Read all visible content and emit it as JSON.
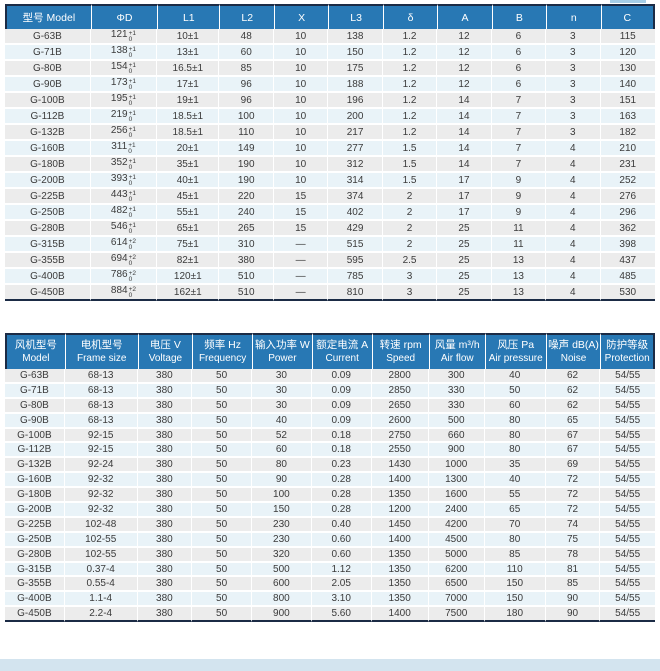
{
  "colors": {
    "header_blue": "#2878b4",
    "dark_border": "#1b2b45",
    "row_gray": "#ececec",
    "row_blue": "#e9f3f8",
    "bottom_band": "#d3e4ef"
  },
  "dimensions_table": {
    "headers": [
      "型号 Model",
      "ΦD",
      "L1",
      "L2",
      "X",
      "L3",
      "δ",
      "A",
      "B",
      "n",
      "C"
    ],
    "rows": [
      [
        "G-63B",
        {
          "v": "121",
          "top": "+1",
          "bot": "0"
        },
        "10±1",
        "48",
        "10",
        "138",
        "1.2",
        "12",
        "6",
        "3",
        "115"
      ],
      [
        "G-71B",
        {
          "v": "138",
          "top": "+1",
          "bot": "0"
        },
        "13±1",
        "60",
        "10",
        "150",
        "1.2",
        "12",
        "6",
        "3",
        "120"
      ],
      [
        "G-80B",
        {
          "v": "154",
          "top": "+1",
          "bot": "0"
        },
        "16.5±1",
        "85",
        "10",
        "175",
        "1.2",
        "12",
        "6",
        "3",
        "130"
      ],
      [
        "G-90B",
        {
          "v": "173",
          "top": "+1",
          "bot": "0"
        },
        "17±1",
        "96",
        "10",
        "188",
        "1.2",
        "12",
        "6",
        "3",
        "140"
      ],
      [
        "G-100B",
        {
          "v": "195",
          "top": "+1",
          "bot": "0"
        },
        "19±1",
        "96",
        "10",
        "196",
        "1.2",
        "14",
        "7",
        "3",
        "151"
      ],
      [
        "G-112B",
        {
          "v": "219",
          "top": "+1",
          "bot": "0"
        },
        "18.5±1",
        "100",
        "10",
        "200",
        "1.2",
        "14",
        "7",
        "3",
        "163"
      ],
      [
        "G-132B",
        {
          "v": "256",
          "top": "+1",
          "bot": "0"
        },
        "18.5±1",
        "110",
        "10",
        "217",
        "1.2",
        "14",
        "7",
        "3",
        "182"
      ],
      [
        "G-160B",
        {
          "v": "311",
          "top": "+1",
          "bot": "0"
        },
        "20±1",
        "149",
        "10",
        "277",
        "1.5",
        "14",
        "7",
        "4",
        "210"
      ],
      [
        "G-180B",
        {
          "v": "352",
          "top": "+1",
          "bot": "0"
        },
        "35±1",
        "190",
        "10",
        "312",
        "1.5",
        "14",
        "7",
        "4",
        "231"
      ],
      [
        "G-200B",
        {
          "v": "393",
          "top": "+1",
          "bot": "0"
        },
        "40±1",
        "190",
        "10",
        "314",
        "1.5",
        "17",
        "9",
        "4",
        "252"
      ],
      [
        "G-225B",
        {
          "v": "443",
          "top": "+1",
          "bot": "0"
        },
        "45±1",
        "220",
        "15",
        "374",
        "2",
        "17",
        "9",
        "4",
        "276"
      ],
      [
        "G-250B",
        {
          "v": "482",
          "top": "+1",
          "bot": "0"
        },
        "55±1",
        "240",
        "15",
        "402",
        "2",
        "17",
        "9",
        "4",
        "296"
      ],
      [
        "G-280B",
        {
          "v": "546",
          "top": "+1",
          "bot": "0"
        },
        "65±1",
        "265",
        "15",
        "429",
        "2",
        "25",
        "11",
        "4",
        "362"
      ],
      [
        "G-315B",
        {
          "v": "614",
          "top": "+2",
          "bot": "0"
        },
        "75±1",
        "310",
        "—",
        "515",
        "2",
        "25",
        "11",
        "4",
        "398"
      ],
      [
        "G-355B",
        {
          "v": "694",
          "top": "+2",
          "bot": "0"
        },
        "82±1",
        "380",
        "—",
        "595",
        "2.5",
        "25",
        "13",
        "4",
        "437"
      ],
      [
        "G-400B",
        {
          "v": "786",
          "top": "+2",
          "bot": "0"
        },
        "120±1",
        "510",
        "—",
        "785",
        "3",
        "25",
        "13",
        "4",
        "485"
      ],
      [
        "G-450B",
        {
          "v": "884",
          "top": "+2",
          "bot": "0"
        },
        "162±1",
        "510",
        "—",
        "810",
        "3",
        "25",
        "13",
        "4",
        "530"
      ]
    ]
  },
  "performance_table": {
    "headers": [
      {
        "zh": "风机型号",
        "en": "Model"
      },
      {
        "zh": "电机型号",
        "en": "Frame size"
      },
      {
        "zh": "电压 V",
        "en": "Voltage"
      },
      {
        "zh": "频率 Hz",
        "en": "Frequency"
      },
      {
        "zh": "输入功率 W",
        "en": "Power"
      },
      {
        "zh": "额定电流 A",
        "en": "Current"
      },
      {
        "zh": "转速 rpm",
        "en": "Speed"
      },
      {
        "zh": "风量 m³/h",
        "en": "Air flow"
      },
      {
        "zh": "风压 Pa",
        "en": "Air pressure"
      },
      {
        "zh": "噪声 dB(A)",
        "en": "Noise"
      },
      {
        "zh": "防护等级",
        "en": "Protection"
      }
    ],
    "rows": [
      [
        "G-63B",
        "68-13",
        "380",
        "50",
        "30",
        "0.09",
        "2800",
        "300",
        "40",
        "62",
        "54/55"
      ],
      [
        "G-71B",
        "68-13",
        "380",
        "50",
        "30",
        "0.09",
        "2850",
        "330",
        "50",
        "62",
        "54/55"
      ],
      [
        "G-80B",
        "68-13",
        "380",
        "50",
        "30",
        "0.09",
        "2650",
        "330",
        "60",
        "62",
        "54/55"
      ],
      [
        "G-90B",
        "68-13",
        "380",
        "50",
        "40",
        "0.09",
        "2600",
        "500",
        "80",
        "65",
        "54/55"
      ],
      [
        "G-100B",
        "92-15",
        "380",
        "50",
        "52",
        "0.18",
        "2750",
        "660",
        "80",
        "67",
        "54/55"
      ],
      [
        "G-112B",
        "92-15",
        "380",
        "50",
        "60",
        "0.18",
        "2550",
        "900",
        "80",
        "67",
        "54/55"
      ],
      [
        "G-132B",
        "92-24",
        "380",
        "50",
        "80",
        "0.23",
        "1430",
        "1000",
        "35",
        "69",
        "54/55"
      ],
      [
        "G-160B",
        "92-32",
        "380",
        "50",
        "90",
        "0.28",
        "1400",
        "1300",
        "40",
        "72",
        "54/55"
      ],
      [
        "G-180B",
        "92-32",
        "380",
        "50",
        "100",
        "0.28",
        "1350",
        "1600",
        "55",
        "72",
        "54/55"
      ],
      [
        "G-200B",
        "92-32",
        "380",
        "50",
        "150",
        "0.28",
        "1200",
        "2400",
        "65",
        "72",
        "54/55"
      ],
      [
        "G-225B",
        "102-48",
        "380",
        "50",
        "230",
        "0.40",
        "1450",
        "4200",
        "70",
        "74",
        "54/55"
      ],
      [
        "G-250B",
        "102-55",
        "380",
        "50",
        "230",
        "0.60",
        "1400",
        "4500",
        "80",
        "75",
        "54/55"
      ],
      [
        "G-280B",
        "102-55",
        "380",
        "50",
        "320",
        "0.60",
        "1350",
        "5000",
        "85",
        "78",
        "54/55"
      ],
      [
        "G-315B",
        "0.37-4",
        "380",
        "50",
        "500",
        "1.12",
        "1350",
        "6200",
        "110",
        "81",
        "54/55"
      ],
      [
        "G-355B",
        "0.55-4",
        "380",
        "50",
        "600",
        "2.05",
        "1350",
        "6500",
        "150",
        "85",
        "54/55"
      ],
      [
        "G-400B",
        "1.1-4",
        "380",
        "50",
        "800",
        "3.10",
        "1350",
        "7000",
        "150",
        "90",
        "54/55"
      ],
      [
        "G-450B",
        "2.2-4",
        "380",
        "50",
        "900",
        "5.60",
        "1400",
        "7500",
        "180",
        "90",
        "54/55"
      ]
    ]
  }
}
